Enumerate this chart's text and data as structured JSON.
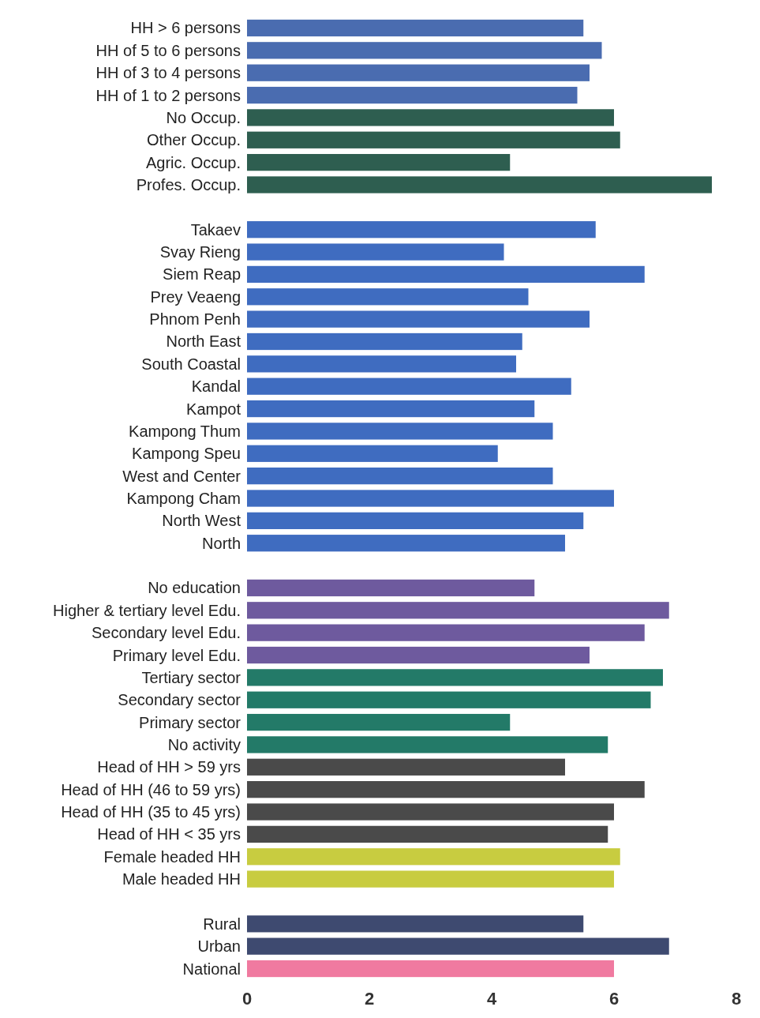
{
  "chart_data": {
    "type": "bar",
    "orientation": "horizontal",
    "categories": [
      "HH > 6 persons",
      "HH of 5 to 6 persons",
      "HH of 3 to 4 persons",
      "HH of 1 to 2 persons",
      "No Occup.",
      "Other Occup.",
      "Agric. Occup.",
      "Profes. Occup.",
      null,
      "Takaev",
      "Svay Rieng",
      "Siem Reap",
      "Prey Veaeng",
      "Phnom Penh",
      "North East",
      "South Coastal",
      "Kandal",
      "Kampot",
      "Kampong Thum",
      "Kampong Speu",
      "West and Center",
      "Kampong Cham",
      "North West",
      "North",
      null,
      "No education",
      "Higher & tertiary level Edu.",
      "Secondary level Edu.",
      "Primary level Edu.",
      "Tertiary sector",
      "Secondary sector",
      "Primary sector",
      "No activity",
      "Head of HH > 59 yrs",
      "Head of HH (46 to 59 yrs)",
      "Head of HH (35 to 45 yrs)",
      "Head of HH < 35 yrs",
      "Female headed HH",
      "Male headed HH",
      null,
      "Rural",
      "Urban",
      "National"
    ],
    "values": [
      5.5,
      5.8,
      5.6,
      5.4,
      6.0,
      6.1,
      4.3,
      7.6,
      null,
      5.7,
      4.2,
      6.5,
      4.6,
      5.6,
      4.5,
      4.4,
      5.3,
      4.7,
      5.0,
      4.1,
      5.0,
      6.0,
      5.5,
      5.2,
      null,
      4.7,
      6.9,
      6.5,
      5.6,
      6.8,
      6.6,
      4.3,
      5.9,
      5.2,
      6.5,
      6.0,
      5.9,
      6.1,
      6.0,
      null,
      5.5,
      6.9,
      6.0
    ],
    "colors": [
      "#4a6cb0",
      "#4a6cb0",
      "#4a6cb0",
      "#4a6cb0",
      "#2e5e50",
      "#2e5e50",
      "#2e5e50",
      "#2e5e50",
      null,
      "#3f6cc0",
      "#3f6cc0",
      "#3f6cc0",
      "#3f6cc0",
      "#3f6cc0",
      "#3f6cc0",
      "#3f6cc0",
      "#3f6cc0",
      "#3f6cc0",
      "#3f6cc0",
      "#3f6cc0",
      "#3f6cc0",
      "#3f6cc0",
      "#3f6cc0",
      "#3f6cc0",
      null,
      "#6e5a9e",
      "#6e5a9e",
      "#6e5a9e",
      "#6e5a9e",
      "#237a68",
      "#237a68",
      "#237a68",
      "#237a68",
      "#4a4a4a",
      "#4a4a4a",
      "#4a4a4a",
      "#4a4a4a",
      "#c8cc40",
      "#c8cc40",
      null,
      "#3e4a70",
      "#3e4a70",
      "#f07aa0"
    ],
    "xlim": [
      0,
      8
    ],
    "xticks": [
      0,
      2,
      4,
      6,
      8
    ]
  }
}
